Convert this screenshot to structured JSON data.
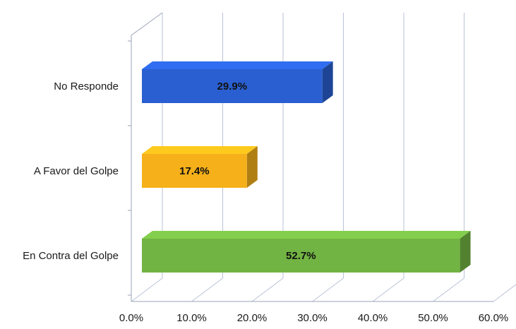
{
  "chart_data": {
    "type": "bar",
    "orientation": "horizontal",
    "categories": [
      "No Responde",
      "A Favor del Golpe",
      "En Contra del Golpe"
    ],
    "values": [
      29.9,
      17.4,
      52.7
    ],
    "data_labels": [
      "29.9%",
      "17.4%",
      "52.7%"
    ],
    "colors": [
      "#2a5fd1",
      "#f5b01a",
      "#72b443"
    ],
    "xlim": [
      0,
      60
    ],
    "x_ticks": [
      0,
      10,
      20,
      30,
      40,
      50,
      60
    ],
    "x_tick_labels": [
      "0.0%",
      "10.0%",
      "20.0%",
      "30.0%",
      "40.0%",
      "50.0%",
      "60.0%"
    ],
    "title": "",
    "xlabel": "",
    "ylabel": "",
    "grid": "vertical",
    "legend": "none",
    "style": "3d"
  }
}
